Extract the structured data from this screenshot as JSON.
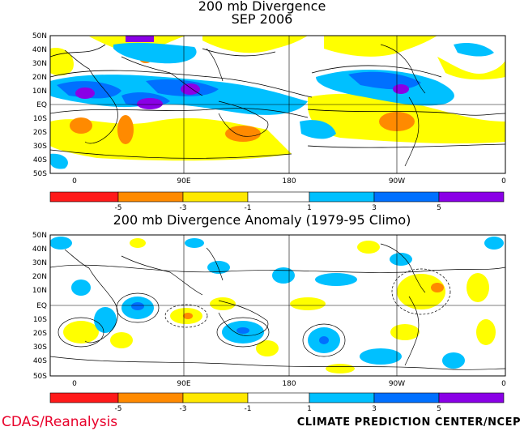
{
  "titles": {
    "line1": "200 mb Divergence",
    "line2": "SEP 2006",
    "anomaly": "200 mb Divergence Anomaly (1979-95 Climo)"
  },
  "lat_labels": [
    "50N",
    "40N",
    "30N",
    "20N",
    "10N",
    "EQ",
    "10S",
    "20S",
    "30S",
    "40S",
    "50S"
  ],
  "lon_labels": [
    "0",
    "90E",
    "180",
    "90W",
    "0"
  ],
  "colorbar": {
    "labels": [
      "-5",
      "-3",
      "-1",
      "1",
      "3",
      "5"
    ],
    "colors": [
      "#ff1a1a",
      "#ff8a00",
      "#ffe800",
      "#ffffff",
      "#00c0ff",
      "#0070ff",
      "#8a00e6"
    ]
  },
  "fill_colors": {
    "neg_strong": "#ff8a00",
    "neg": "#ffff00",
    "pos": "#00c0ff",
    "pos_mid": "#0070ff",
    "pos_strong": "#8a00e6"
  },
  "footer": {
    "left": "CDAS/Reanalysis",
    "right": "CLIMATE PREDICTION CENTER/NCEP"
  }
}
